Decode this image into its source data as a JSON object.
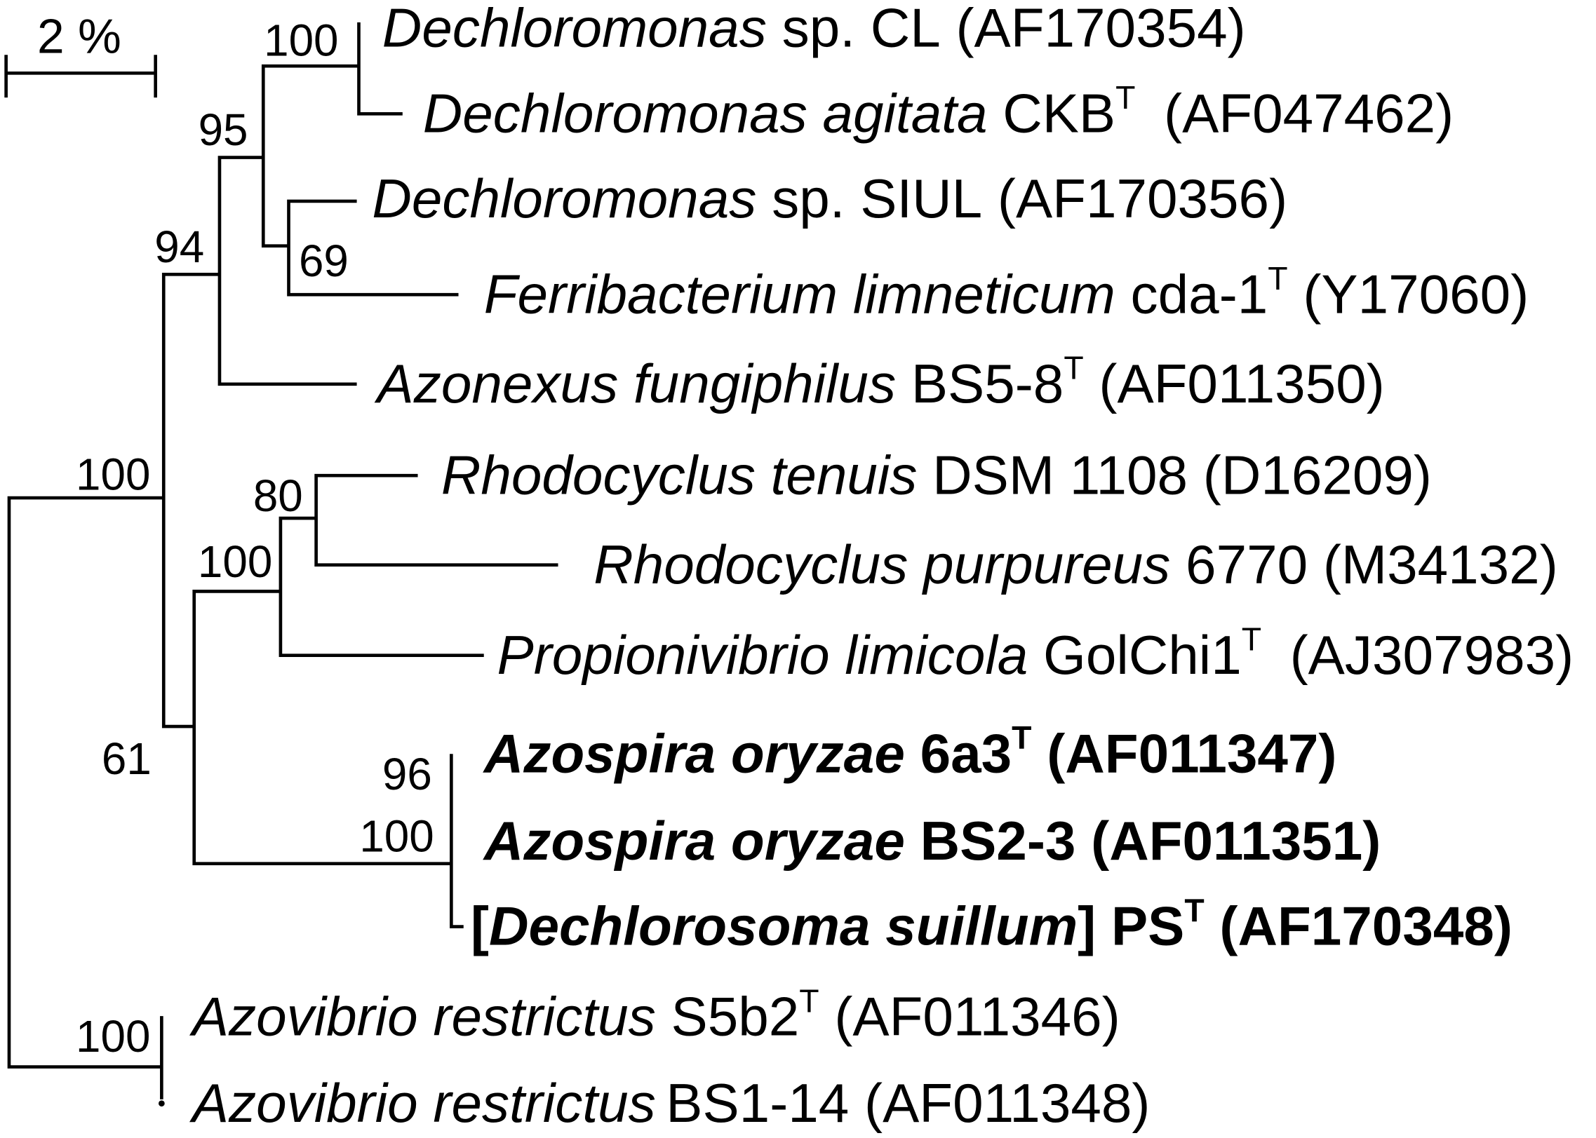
{
  "scale_bar": {
    "label": "2 %"
  },
  "bootstrap": [
    "100",
    "95",
    "94",
    "69",
    "100",
    "80",
    "100",
    "61",
    "96",
    "100",
    "100"
  ],
  "leaves": [
    {
      "name": "Dechloromonas",
      "strain": "sp. CL",
      "accession": "(AF170354)"
    },
    {
      "name": "Dechloromonas agitata",
      "strain": "CKB",
      "type_mark": "T",
      "accession": "(AF047462)"
    },
    {
      "name": "Dechloromonas",
      "strain": "sp. SIUL",
      "accession": "(AF170356)"
    },
    {
      "name": "Ferribacterium limneticum",
      "strain": "cda-1",
      "type_mark": "T",
      "accession": "(Y17060)"
    },
    {
      "name": "Azonexus fungiphilus",
      "strain": "BS5-8",
      "type_mark": "T",
      "accession": "(AF011350)"
    },
    {
      "name": "Rhodocyclus tenuis",
      "strain": "DSM 1108",
      "accession": "(D16209)"
    },
    {
      "name": "Rhodocyclus purpureus",
      "strain": "6770",
      "accession": "(M34132)"
    },
    {
      "name": "Propionivibrio limicola",
      "strain": "GolChi1",
      "type_mark": "T",
      "accession": "(AJ307983)"
    },
    {
      "name": "Azospira oryzae",
      "strain": "6a3",
      "type_mark": "T",
      "accession": "(AF011347)"
    },
    {
      "name": "Azospira oryzae",
      "strain": "BS2-3",
      "accession": "(AF011351)"
    },
    {
      "prefix": "[",
      "name": "Dechlorosoma suillum",
      "suffix": "]",
      "strain": "PS",
      "type_mark": "T",
      "accession": "(AF170348)"
    },
    {
      "name": "Azovibrio restrictus",
      "strain": "S5b2",
      "type_mark": "T",
      "accession": "(AF011346)"
    },
    {
      "name": "Azovibrio restrictus",
      "strain": "BS1-14",
      "accession": "(AF011348)"
    }
  ]
}
